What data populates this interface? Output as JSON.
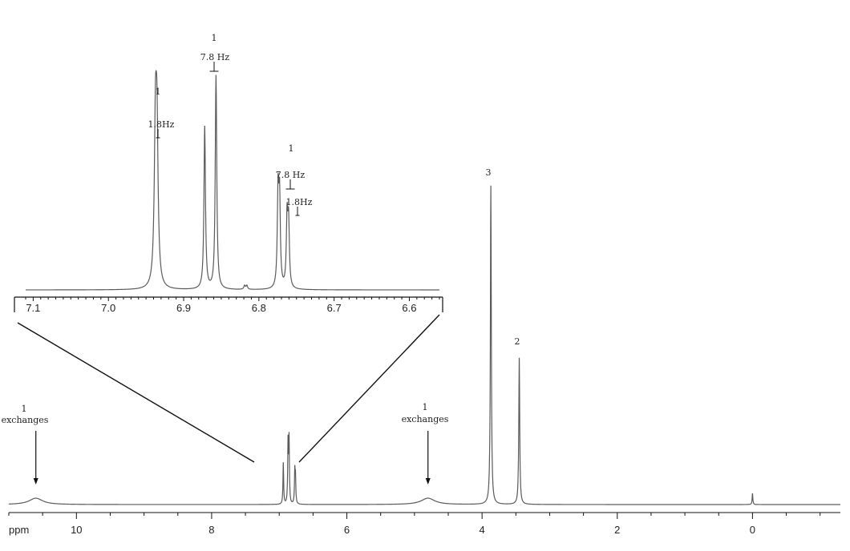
{
  "chart_data": [
    {
      "type": "line",
      "name_hint": "full-spectrum",
      "x_unit_label": "ppm",
      "xlim": [
        11.0,
        -1.3
      ],
      "x_reversed": true,
      "x_ticks": [
        10,
        8,
        6,
        4,
        2,
        0
      ],
      "x_tick_labels": [
        "10",
        "8",
        "6",
        "4",
        "2",
        "0"
      ],
      "peaks": [
        {
          "ppm": 10.6,
          "height": 0.02,
          "width": 0.12,
          "label_count": "1",
          "label_note": "exchanges",
          "arrow": true
        },
        {
          "ppm": 4.8,
          "height": 0.02,
          "width": 0.12,
          "label_count": "1",
          "label_note": "exchanges",
          "arrow": true
        },
        {
          "ppm": 3.87,
          "height": 1.0,
          "width": 0.008,
          "label_count": "3"
        },
        {
          "ppm": 3.45,
          "height": 0.46,
          "width": 0.008,
          "label_count": "2"
        },
        {
          "ppm": 0.0,
          "height": 0.035,
          "width": 0.006
        },
        {
          "ppm": 6.94,
          "height": 0.13,
          "width": 0.006
        },
        {
          "ppm": 6.87,
          "height": 0.19,
          "width": 0.006
        },
        {
          "ppm": 6.855,
          "height": 0.2,
          "width": 0.006
        },
        {
          "ppm": 6.77,
          "height": 0.1,
          "width": 0.006
        },
        {
          "ppm": 6.76,
          "height": 0.08,
          "width": 0.006
        }
      ]
    },
    {
      "type": "line",
      "name_hint": "aromatic-expansion",
      "xlim": [
        7.11,
        6.56
      ],
      "x_reversed": true,
      "x_ticks": [
        7.1,
        7.0,
        6.9,
        6.8,
        6.7,
        6.6
      ],
      "x_tick_labels": [
        "7.1",
        "7.0",
        "6.9",
        "6.8",
        "6.7",
        "6.6"
      ],
      "peaks": [
        {
          "ppm": 6.9375,
          "height": 0.68,
          "width": 0.0018
        },
        {
          "ppm": 6.9355,
          "height": 0.66,
          "width": 0.0018
        },
        {
          "ppm": 6.872,
          "height": 0.76,
          "width": 0.0012
        },
        {
          "ppm": 6.857,
          "height": 1.0,
          "width": 0.0012
        },
        {
          "ppm": 6.7745,
          "height": 0.43,
          "width": 0.0012
        },
        {
          "ppm": 6.7725,
          "height": 0.4,
          "width": 0.0012
        },
        {
          "ppm": 6.7625,
          "height": 0.32,
          "width": 0.0012
        },
        {
          "ppm": 6.7605,
          "height": 0.29,
          "width": 0.0012
        },
        {
          "ppm": 6.819,
          "height": 0.018,
          "width": 0.0012
        },
        {
          "ppm": 6.816,
          "height": 0.018,
          "width": 0.0012
        }
      ],
      "annotations": [
        {
          "count": "1",
          "coupling": "1.8Hz"
        },
        {
          "count": "1",
          "coupling": "7.8 Hz"
        },
        {
          "count": "1",
          "coupling": "7.8 Hz",
          "coupling2": "1.8Hz"
        }
      ]
    }
  ],
  "labels": {
    "full": {
      "ppm": "ppm",
      "peak_10_6_count": "1",
      "peak_10_6_note": "exchanges",
      "peak_4_8_count": "1",
      "peak_4_8_note": "exchanges",
      "peak_3_87_count": "3",
      "peak_3_45_count": "2"
    },
    "inset": {
      "group1_count": "1",
      "group1_coupling": "1.8Hz",
      "group2_count": "1",
      "group2_coupling": "7.8 Hz",
      "group3_count": "1",
      "group3_coupling": "7.8 Hz",
      "group3_coupling2": "1.8Hz"
    }
  },
  "colors": {
    "trace": "#5a5a5a",
    "axis": "#111111",
    "text": "#222222",
    "expansion_line": "#111111"
  }
}
